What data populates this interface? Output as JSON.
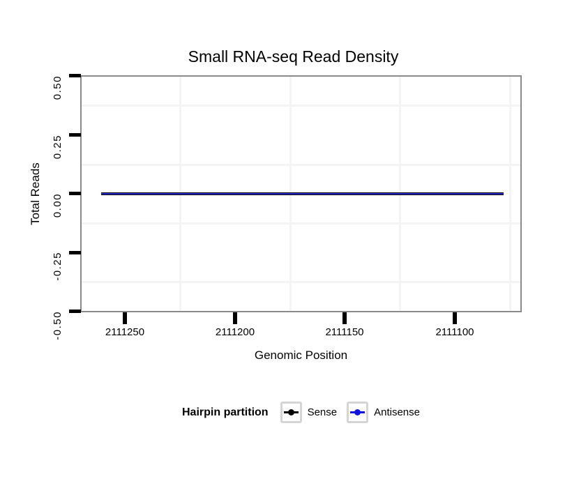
{
  "title": "Small RNA-seq Read Density",
  "chart_data": {
    "type": "line",
    "title": "Small RNA-seq Read Density",
    "xlabel": "Genomic Position",
    "ylabel": "Total Reads",
    "x_tick_labels": [
      "2111250",
      "2111200",
      "2111150",
      "2111100"
    ],
    "x_axis_direction": "decreasing-left-to-right",
    "x_extent": [
      2111261,
      2111078
    ],
    "y_tick_labels": [
      "0.50",
      "0.25",
      "0.00",
      "-0.25",
      "-0.50"
    ],
    "ylim": [
      -0.5,
      0.5
    ],
    "grid": "minor gridlines only at 0.125 intervals (y) and 25 bp midpoints (x), very light gray",
    "legend_position": "bottom",
    "legend_title": "Hairpin partition",
    "series": [
      {
        "name": "Sense",
        "color": "#000000",
        "y_constant": 0,
        "x_from": 2111261,
        "x_to": 2111078
      },
      {
        "name": "Antisense",
        "color": "#1212dd",
        "y_constant": 0,
        "x_from": 2111261,
        "x_to": 2111078
      }
    ]
  },
  "colors": {
    "background": "#ffffff",
    "panel_border": "#8a8a8a",
    "minor_grid": "#f4f4f4",
    "tick": "#000000",
    "legend_key_border": "#d5d5d5",
    "sense": "#000000",
    "antisense": "#1212dd",
    "overplotted_line_core": "#2828c8"
  }
}
